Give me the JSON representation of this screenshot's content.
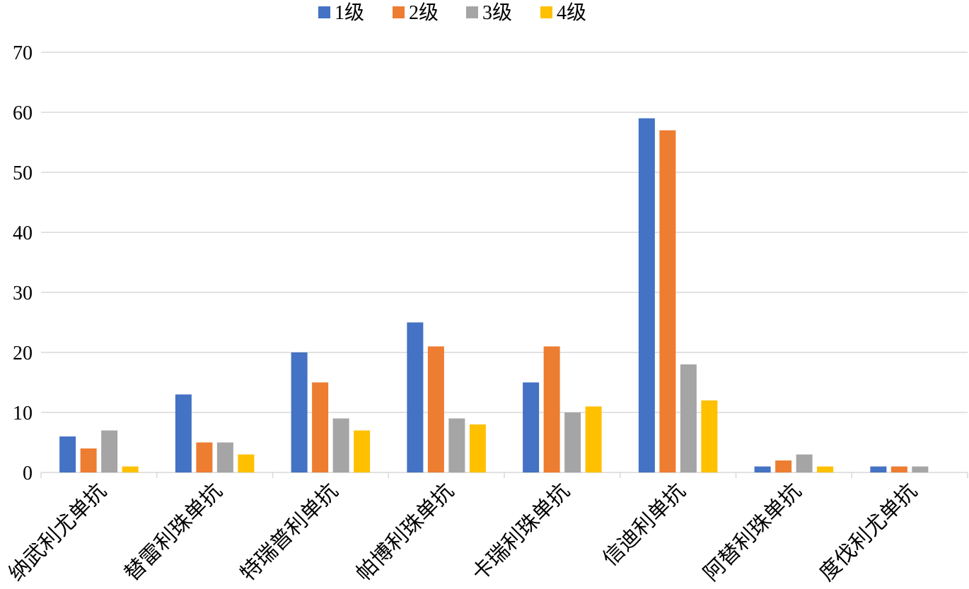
{
  "chart_data": {
    "type": "bar",
    "title": "",
    "xlabel": "",
    "ylabel": "",
    "categories": [
      "纳武利尤单抗",
      "替雷利珠单抗",
      "特瑞普利单抗",
      "帕博利珠单抗",
      "卡瑞利珠单抗",
      "信迪利单抗",
      "阿替利珠单抗",
      "度伐利尤单抗"
    ],
    "series": [
      {
        "name": "1级",
        "color": "#4472C4",
        "values": [
          6,
          13,
          20,
          25,
          15,
          59,
          1,
          1
        ]
      },
      {
        "name": "2级",
        "color": "#ED7D31",
        "values": [
          4,
          5,
          15,
          21,
          21,
          57,
          2,
          1
        ]
      },
      {
        "name": "3级",
        "color": "#A5A5A5",
        "values": [
          7,
          5,
          9,
          9,
          10,
          18,
          3,
          1
        ]
      },
      {
        "name": "4级",
        "color": "#FFC000",
        "values": [
          1,
          3,
          7,
          8,
          11,
          12,
          1,
          0
        ]
      }
    ],
    "ylim": [
      0,
      70
    ],
    "yticks": [
      0,
      10,
      20,
      30,
      40,
      50,
      60,
      70
    ],
    "grid": true,
    "legend_position": "top-center"
  }
}
